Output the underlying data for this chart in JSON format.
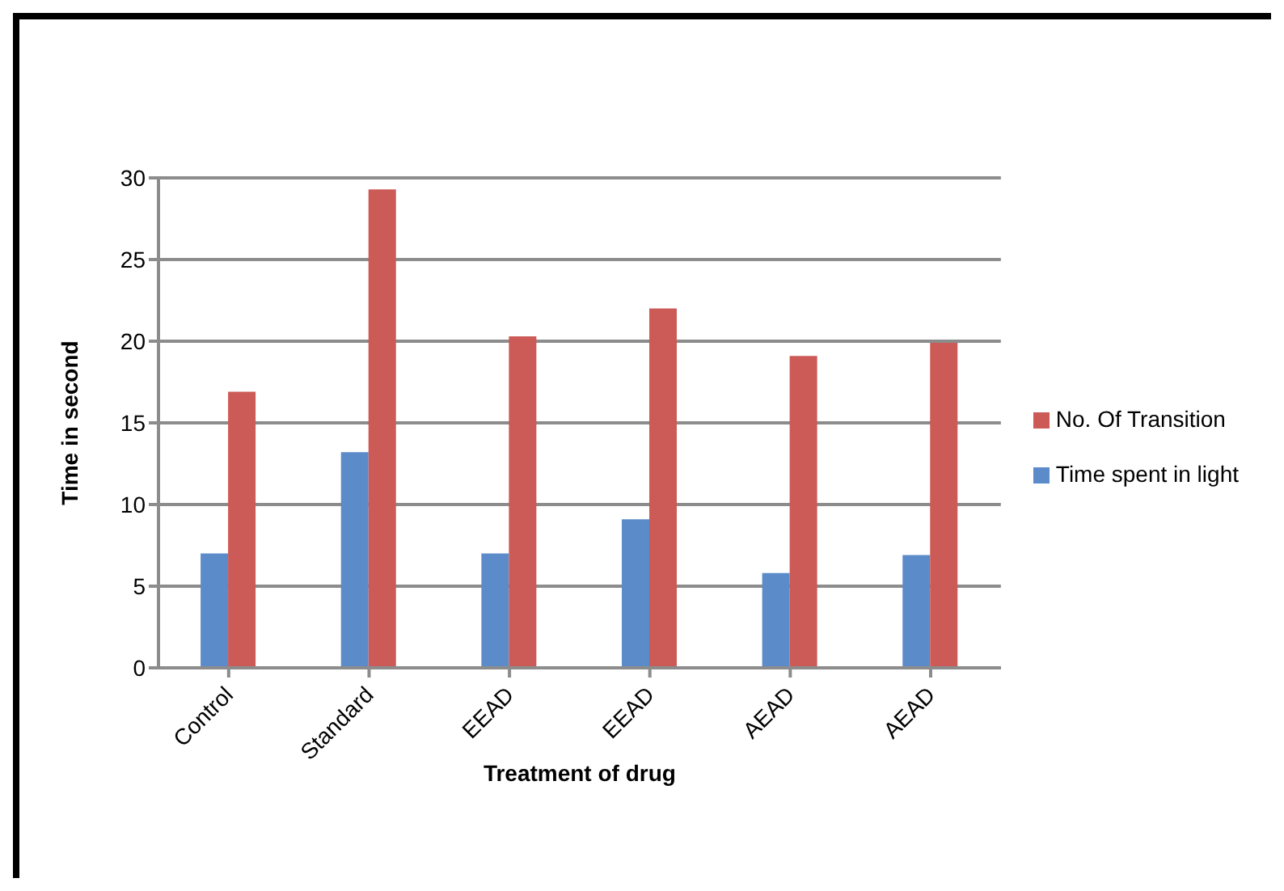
{
  "chart_data": {
    "type": "bar",
    "xlabel": "Treatment of  drug",
    "ylabel": "Time in second",
    "categories": [
      "Control",
      "Standard",
      "EEAD",
      "EEAD",
      "AEAD",
      "AEAD"
    ],
    "series": [
      {
        "name": "Time spent in light",
        "color": "#5b8bc9",
        "values": [
          7.0,
          13.2,
          7.0,
          9.1,
          5.8,
          6.9
        ]
      },
      {
        "name": "No. Of Transition",
        "color": "#cc5a56",
        "values": [
          16.9,
          29.3,
          20.3,
          22.0,
          19.1,
          19.9
        ]
      }
    ],
    "ylim": [
      0,
      30
    ],
    "yticks": [
      0,
      5,
      10,
      15,
      20,
      25,
      30
    ],
    "grid": "y",
    "legend": "right"
  }
}
